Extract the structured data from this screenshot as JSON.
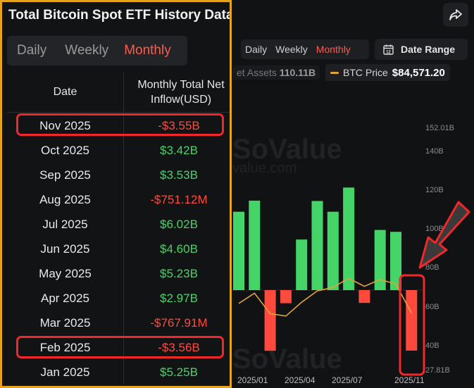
{
  "header": {
    "share_icon": "share-arrow-icon",
    "period_buttons": [
      "Daily",
      "Weekly",
      "Monthly"
    ],
    "active_period": "Monthly",
    "date_range_label": "Date Range",
    "calendar_icon": "calendar-icon"
  },
  "legend": {
    "net_assets_label": "et Assets",
    "net_assets_value": "110.11B",
    "btc_price_label": "BTC Price",
    "btc_price_value": "$84,571.20"
  },
  "watermark": {
    "brand": "SoValue",
    "domain": "value.com"
  },
  "panel": {
    "title": "Total Bitcoin Spot ETF History Data",
    "tabs": [
      "Daily",
      "Weekly",
      "Monthly"
    ],
    "active_tab": "Monthly",
    "columns": [
      "Date",
      "Monthly Total Net Inflow(USD)"
    ],
    "rows": [
      {
        "date": "Nov 2025",
        "value": "-$3.55B"
      },
      {
        "date": "Oct 2025",
        "value": "$3.42B"
      },
      {
        "date": "Sep 2025",
        "value": "$3.53B"
      },
      {
        "date": "Aug 2025",
        "value": "-$751.12M"
      },
      {
        "date": "Jul 2025",
        "value": "$6.02B"
      },
      {
        "date": "Jun 2025",
        "value": "$4.60B"
      },
      {
        "date": "May 2025",
        "value": "$5.23B"
      },
      {
        "date": "Apr 2025",
        "value": "$2.97B"
      },
      {
        "date": "Mar 2025",
        "value": "-$767.91M"
      },
      {
        "date": "Feb 2025",
        "value": "-$3.56B"
      },
      {
        "date": "Jan 2025",
        "value": "$5.25B"
      }
    ],
    "highlighted_rows": [
      "Nov 2025",
      "Feb 2025"
    ]
  },
  "colors": {
    "accent": "#ff5a4d",
    "positive": "#45d467",
    "negative": "#ff4a3d",
    "btc_line": "#e0a33a",
    "panel_border": "#e6a41c",
    "highlight": "#f0282a"
  },
  "chart_data": {
    "type": "bar",
    "x_tick_labels": [
      "2025/01",
      "2025/04",
      "2025/07",
      "2025/11"
    ],
    "right_axis_ticks": [
      "152.01B",
      "140B",
      "120B",
      "100B",
      "80B",
      "60B",
      "40B",
      "27.81B"
    ],
    "series": [
      {
        "name": "Monthly Total Net Inflow(USD)",
        "categories": [
          "2024/12",
          "2025/01",
          "2025/02",
          "2025/03",
          "2025/04",
          "2025/05",
          "2025/06",
          "2025/07",
          "2025/08",
          "2025/09",
          "2025/10",
          "2025/11"
        ],
        "values": [
          4.6,
          5.25,
          -3.56,
          -0.768,
          2.97,
          5.23,
          4.6,
          6.02,
          -0.751,
          3.53,
          3.42,
          -3.55
        ],
        "unit": "B USD"
      },
      {
        "name": "BTC Price",
        "categories": [
          "2024/12",
          "2025/01",
          "2025/02",
          "2025/03",
          "2025/04",
          "2025/05",
          "2025/06",
          "2025/07",
          "2025/08",
          "2025/09",
          "2025/10",
          "2025/11"
        ],
        "values": [
          93000,
          102000,
          84000,
          82000,
          94000,
          104000,
          107000,
          115000,
          108000,
          114000,
          110000,
          84571.2
        ],
        "unit": "USD"
      }
    ],
    "grid": false
  }
}
